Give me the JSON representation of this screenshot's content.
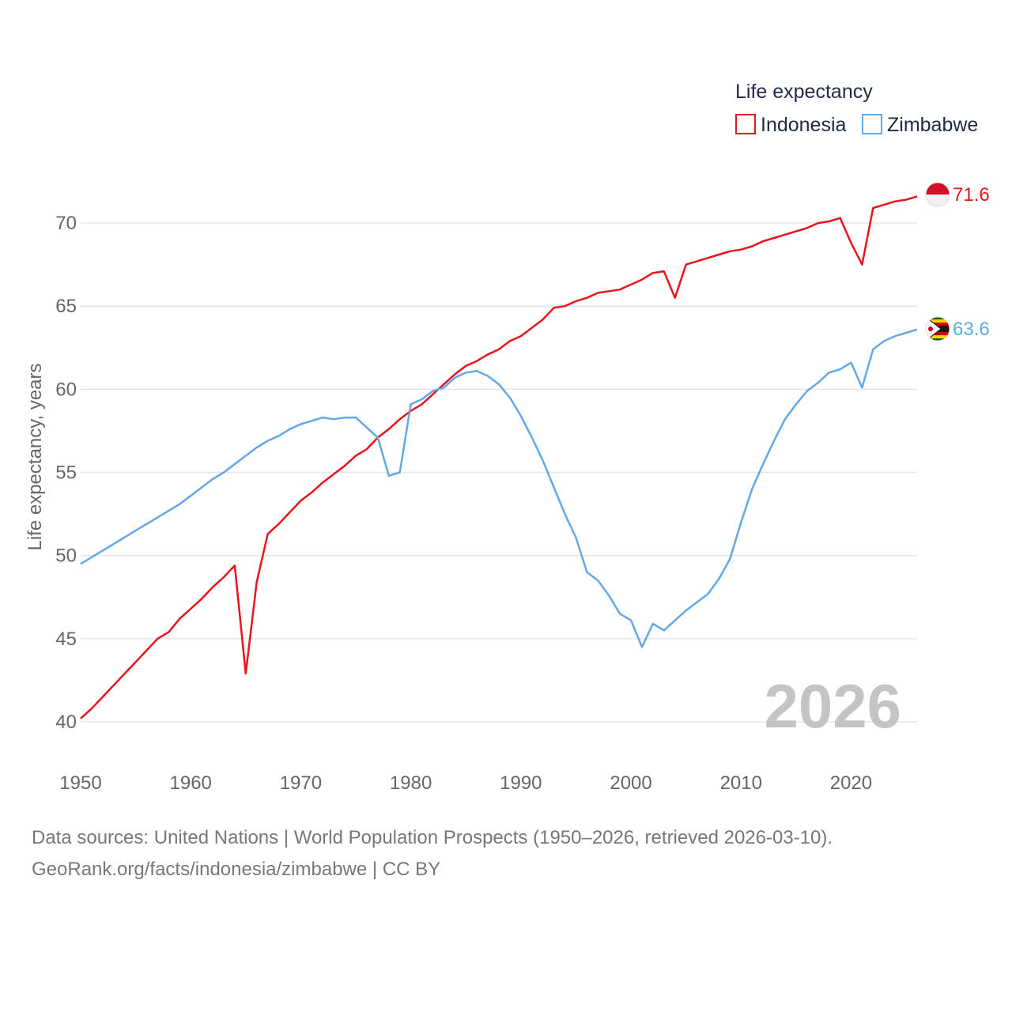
{
  "chart_data": {
    "type": "line",
    "title": "",
    "year_label": "2026",
    "xlabel": "",
    "ylabel": "Life expectancy, years",
    "xlim": [
      1950,
      2026
    ],
    "ylim": [
      40,
      72
    ],
    "x_ticks": [
      1950,
      1960,
      1970,
      1980,
      1990,
      2000,
      2010,
      2020
    ],
    "y_ticks": [
      40,
      45,
      50,
      55,
      60,
      65,
      70
    ],
    "legend": {
      "title": "Life expectancy",
      "placement": "top-right",
      "entries": [
        "Indonesia",
        "Zimbabwe"
      ]
    },
    "x": [
      1950,
      1951,
      1952,
      1953,
      1954,
      1955,
      1956,
      1957,
      1958,
      1959,
      1960,
      1961,
      1962,
      1963,
      1964,
      1965,
      1966,
      1967,
      1968,
      1969,
      1970,
      1971,
      1972,
      1973,
      1974,
      1975,
      1976,
      1977,
      1978,
      1979,
      1980,
      1981,
      1982,
      1983,
      1984,
      1985,
      1986,
      1987,
      1988,
      1989,
      1990,
      1991,
      1992,
      1993,
      1994,
      1995,
      1996,
      1997,
      1998,
      1999,
      2000,
      2001,
      2002,
      2003,
      2004,
      2005,
      2006,
      2007,
      2008,
      2009,
      2010,
      2011,
      2012,
      2013,
      2014,
      2015,
      2016,
      2017,
      2018,
      2019,
      2020,
      2021,
      2022,
      2023,
      2024,
      2025,
      2026
    ],
    "series": [
      {
        "name": "Indonesia",
        "color": "#e8141c",
        "end_label": "71.6",
        "values": [
          40.2,
          40.8,
          41.5,
          42.2,
          42.9,
          43.6,
          44.3,
          45.0,
          45.4,
          46.2,
          46.8,
          47.4,
          48.1,
          48.7,
          49.4,
          42.9,
          48.4,
          51.3,
          51.9,
          52.6,
          53.3,
          53.8,
          54.4,
          54.9,
          55.4,
          56.0,
          56.4,
          57.1,
          57.6,
          58.2,
          58.7,
          59.1,
          59.7,
          60.3,
          60.9,
          61.4,
          61.7,
          62.1,
          62.4,
          62.9,
          63.2,
          63.7,
          64.2,
          64.9,
          65.0,
          65.3,
          65.5,
          65.8,
          65.9,
          66.0,
          66.3,
          66.6,
          67.0,
          67.1,
          65.5,
          67.5,
          67.7,
          67.9,
          68.1,
          68.3,
          68.4,
          68.6,
          68.9,
          69.1,
          69.3,
          69.5,
          69.7,
          70.0,
          70.1,
          70.3,
          68.8,
          67.5,
          70.9,
          71.1,
          71.3,
          71.4,
          71.6
        ]
      },
      {
        "name": "Zimbabwe",
        "color": "#62a8e8",
        "end_label": "63.6",
        "values": [
          49.5,
          49.9,
          50.3,
          50.7,
          51.1,
          51.5,
          51.9,
          52.3,
          52.7,
          53.1,
          53.6,
          54.1,
          54.6,
          55.0,
          55.5,
          56.0,
          56.5,
          56.9,
          57.2,
          57.6,
          57.9,
          58.1,
          58.3,
          58.2,
          58.3,
          58.3,
          57.7,
          57.1,
          54.8,
          55.0,
          59.1,
          59.4,
          59.9,
          60.1,
          60.7,
          61.0,
          61.1,
          60.8,
          60.3,
          59.5,
          58.4,
          57.1,
          55.7,
          54.1,
          52.5,
          51.1,
          49.0,
          48.5,
          47.6,
          46.5,
          46.1,
          44.5,
          45.9,
          45.5,
          46.1,
          46.7,
          47.2,
          47.7,
          48.6,
          49.8,
          52.0,
          54.0,
          55.5,
          56.9,
          58.2,
          59.1,
          59.9,
          60.4,
          61.0,
          61.2,
          61.6,
          60.1,
          62.4,
          62.9,
          63.2,
          63.4,
          63.6
        ]
      }
    ]
  },
  "footer": {
    "line1": "Data sources: United Nations | World Population Prospects (1950–2026, retrieved 2026-03-10).",
    "line2": "GeoRank.org/facts/indonesia/zimbabwe | CC BY"
  }
}
